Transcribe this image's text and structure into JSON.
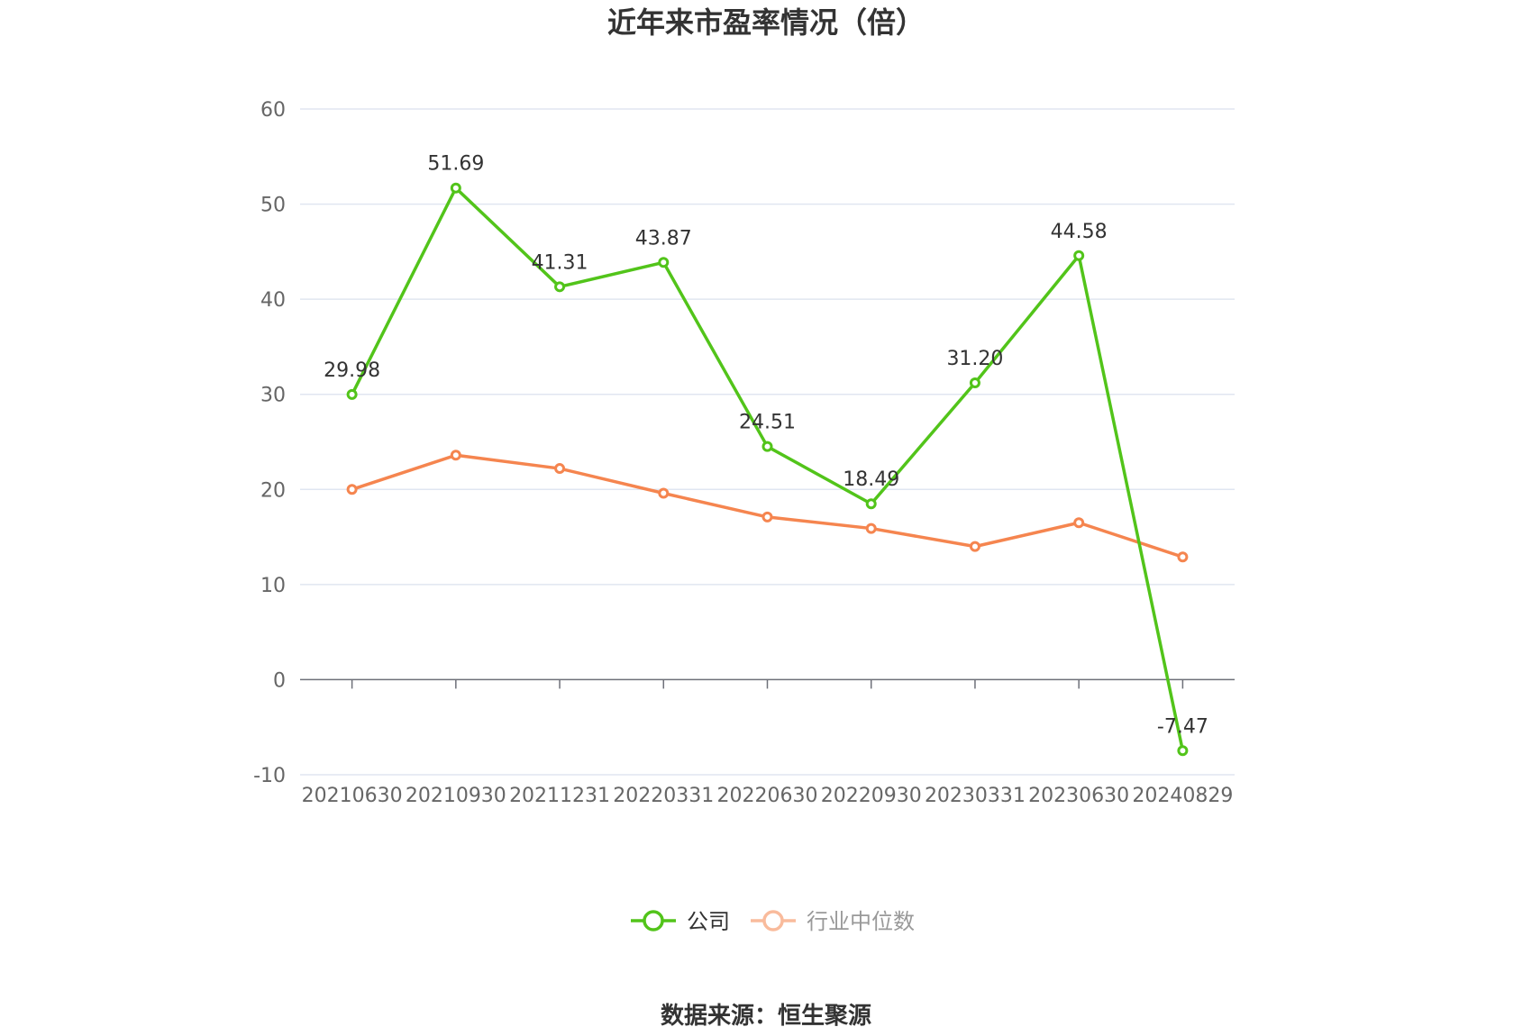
{
  "chart_data": {
    "type": "line",
    "title": "近年来市盈率情况（倍）",
    "categories": [
      "20210630",
      "20210930",
      "20211231",
      "20220331",
      "20220630",
      "20220930",
      "20230331",
      "20230630",
      "20240829"
    ],
    "series": [
      {
        "name": "公司",
        "color": "#52c41a",
        "values": [
          29.98,
          51.69,
          41.31,
          43.87,
          24.51,
          18.49,
          31.2,
          44.58,
          -7.47
        ],
        "labels": [
          "29.98",
          "51.69",
          "41.31",
          "43.87",
          "24.51",
          "18.49",
          "31.20",
          "44.58",
          "-7.47"
        ]
      },
      {
        "name": "行业中位数",
        "color": "#f5854f",
        "values": [
          20.0,
          23.6,
          22.2,
          19.6,
          17.1,
          15.9,
          14.0,
          16.5,
          12.9
        ]
      }
    ],
    "ylim": [
      -10,
      60
    ],
    "yticks": [
      -10,
      0,
      10,
      20,
      30,
      40,
      50,
      60
    ],
    "grid": true,
    "legend_position": "bottom"
  },
  "source": "数据来源：恒生聚源"
}
